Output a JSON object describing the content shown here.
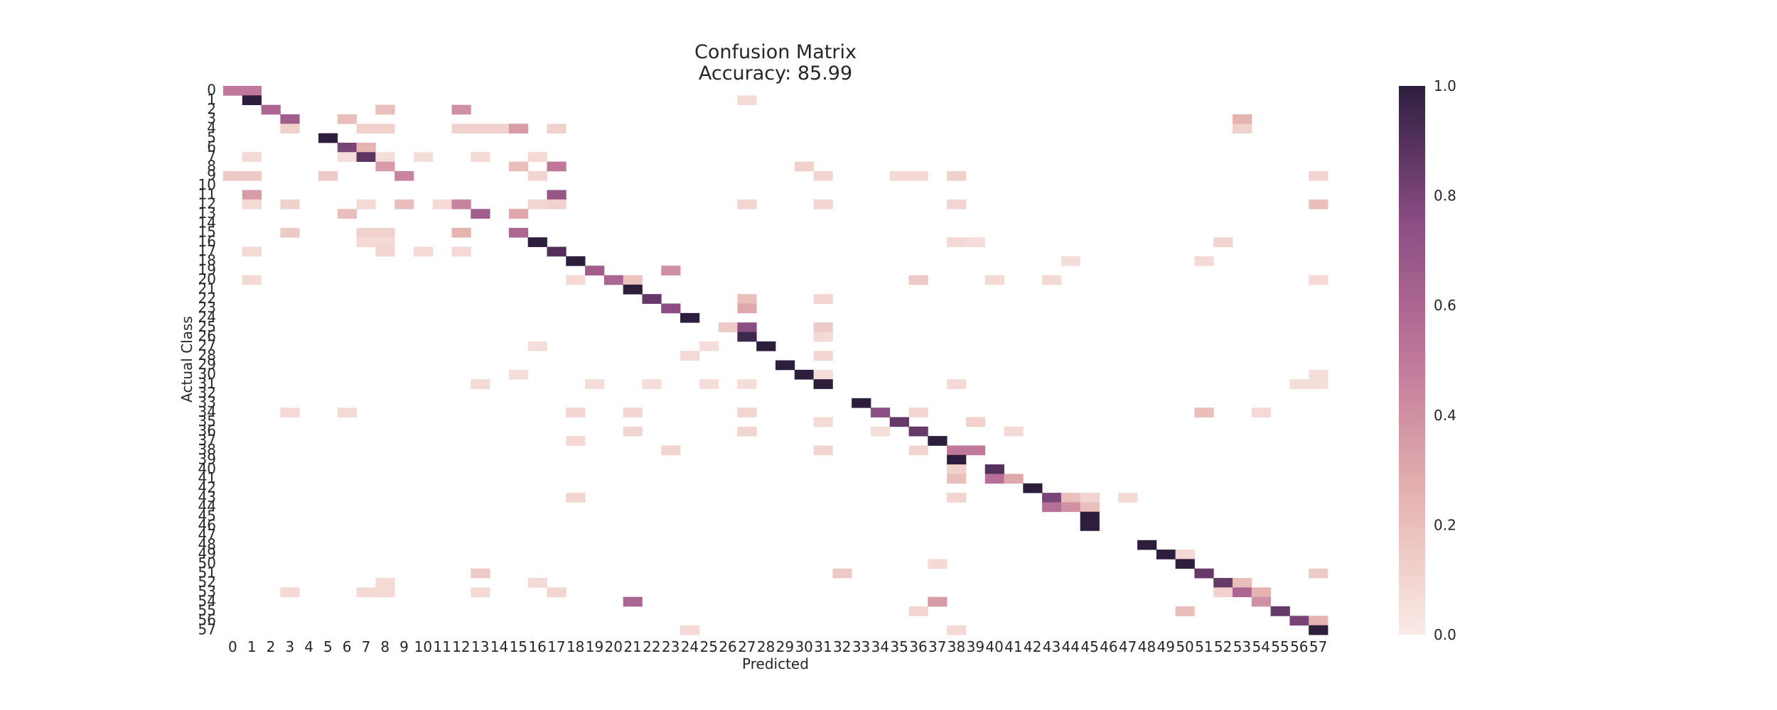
{
  "chart_data": {
    "type": "heatmap",
    "title": "Confusion Matrix",
    "subtitle": "Accuracy: 85.99",
    "xlabel": "Predicted",
    "ylabel": "Actual Class",
    "x_categories": [
      "0",
      "1",
      "2",
      "3",
      "4",
      "5",
      "6",
      "7",
      "8",
      "9",
      "10",
      "11",
      "12",
      "13",
      "14",
      "15",
      "16",
      "17",
      "18",
      "19",
      "20",
      "21",
      "22",
      "23",
      "24",
      "25",
      "26",
      "27",
      "28",
      "29",
      "30",
      "31",
      "32",
      "33",
      "34",
      "35",
      "36",
      "37",
      "38",
      "39",
      "40",
      "41",
      "42",
      "43",
      "44",
      "45",
      "46",
      "47",
      "48",
      "49",
      "50",
      "51",
      "52",
      "53",
      "54",
      "55",
      "56",
      "57"
    ],
    "y_categories": [
      "0",
      "1",
      "2",
      "3",
      "4",
      "5",
      "6",
      "7",
      "8",
      "9",
      "10",
      "11",
      "12",
      "13",
      "14",
      "15",
      "16",
      "17",
      "18",
      "19",
      "20",
      "21",
      "22",
      "23",
      "24",
      "25",
      "26",
      "27",
      "28",
      "29",
      "30",
      "31",
      "32",
      "33",
      "34",
      "35",
      "36",
      "37",
      "38",
      "39",
      "40",
      "41",
      "42",
      "43",
      "44",
      "45",
      "46",
      "47",
      "48",
      "49",
      "50",
      "51",
      "52",
      "53",
      "54",
      "55",
      "56",
      "57"
    ],
    "value_range": [
      0.0,
      1.0
    ],
    "colorbar_ticks": [
      "0.0",
      "0.2",
      "0.4",
      "0.6",
      "0.8",
      "1.0"
    ],
    "colormap": [
      "#faebe6",
      "#e6b4b0",
      "#c0789a",
      "#8c4d84",
      "#2d1e3e"
    ],
    "cells": [
      [
        0,
        0,
        0.5
      ],
      [
        0,
        1,
        0.5
      ],
      [
        1,
        1,
        1.0
      ],
      [
        1,
        27,
        0.08
      ],
      [
        2,
        2,
        0.6
      ],
      [
        2,
        8,
        0.2
      ],
      [
        2,
        12,
        0.4
      ],
      [
        3,
        3,
        0.65
      ],
      [
        3,
        6,
        0.2
      ],
      [
        3,
        53,
        0.25
      ],
      [
        4,
        3,
        0.12
      ],
      [
        4,
        7,
        0.12
      ],
      [
        4,
        8,
        0.12
      ],
      [
        4,
        12,
        0.12
      ],
      [
        4,
        13,
        0.12
      ],
      [
        4,
        14,
        0.12
      ],
      [
        4,
        15,
        0.35
      ],
      [
        4,
        17,
        0.12
      ],
      [
        4,
        53,
        0.12
      ],
      [
        5,
        5,
        1.0
      ],
      [
        6,
        6,
        0.8
      ],
      [
        6,
        7,
        0.25
      ],
      [
        7,
        1,
        0.08
      ],
      [
        7,
        6,
        0.06
      ],
      [
        7,
        7,
        0.88
      ],
      [
        7,
        8,
        0.06
      ],
      [
        7,
        10,
        0.06
      ],
      [
        7,
        13,
        0.08
      ],
      [
        7,
        16,
        0.08
      ],
      [
        8,
        8,
        0.35
      ],
      [
        8,
        15,
        0.2
      ],
      [
        8,
        17,
        0.5
      ],
      [
        8,
        30,
        0.12
      ],
      [
        9,
        0,
        0.15
      ],
      [
        9,
        1,
        0.15
      ],
      [
        9,
        5,
        0.15
      ],
      [
        9,
        9,
        0.45
      ],
      [
        9,
        16,
        0.1
      ],
      [
        9,
        31,
        0.1
      ],
      [
        9,
        35,
        0.08
      ],
      [
        9,
        36,
        0.08
      ],
      [
        9,
        38,
        0.12
      ],
      [
        9,
        57,
        0.1
      ],
      [
        11,
        1,
        0.35
      ],
      [
        11,
        17,
        0.7
      ],
      [
        12,
        1,
        0.08
      ],
      [
        12,
        3,
        0.12
      ],
      [
        12,
        7,
        0.08
      ],
      [
        12,
        9,
        0.2
      ],
      [
        12,
        11,
        0.08
      ],
      [
        12,
        12,
        0.45
      ],
      [
        12,
        16,
        0.1
      ],
      [
        12,
        17,
        0.12
      ],
      [
        12,
        27,
        0.1
      ],
      [
        12,
        31,
        0.1
      ],
      [
        12,
        38,
        0.1
      ],
      [
        12,
        57,
        0.2
      ],
      [
        13,
        6,
        0.2
      ],
      [
        13,
        13,
        0.65
      ],
      [
        13,
        15,
        0.3
      ],
      [
        15,
        3,
        0.15
      ],
      [
        15,
        7,
        0.12
      ],
      [
        15,
        8,
        0.12
      ],
      [
        15,
        12,
        0.25
      ],
      [
        15,
        15,
        0.6
      ],
      [
        16,
        7,
        0.08
      ],
      [
        16,
        8,
        0.08
      ],
      [
        16,
        16,
        1.0
      ],
      [
        16,
        38,
        0.08
      ],
      [
        16,
        39,
        0.06
      ],
      [
        16,
        52,
        0.1
      ],
      [
        17,
        1,
        0.08
      ],
      [
        17,
        8,
        0.1
      ],
      [
        17,
        10,
        0.08
      ],
      [
        17,
        12,
        0.08
      ],
      [
        17,
        17,
        0.9
      ],
      [
        18,
        18,
        1.0
      ],
      [
        18,
        44,
        0.06
      ],
      [
        18,
        51,
        0.08
      ],
      [
        19,
        19,
        0.65
      ],
      [
        19,
        23,
        0.4
      ],
      [
        20,
        1,
        0.08
      ],
      [
        20,
        18,
        0.08
      ],
      [
        20,
        20,
        0.6
      ],
      [
        20,
        21,
        0.18
      ],
      [
        20,
        36,
        0.15
      ],
      [
        20,
        40,
        0.08
      ],
      [
        20,
        43,
        0.08
      ],
      [
        20,
        57,
        0.08
      ],
      [
        21,
        21,
        1.0
      ],
      [
        22,
        22,
        0.85
      ],
      [
        22,
        27,
        0.2
      ],
      [
        22,
        31,
        0.1
      ],
      [
        23,
        23,
        0.75
      ],
      [
        23,
        27,
        0.3
      ],
      [
        24,
        24,
        1.0
      ],
      [
        25,
        26,
        0.15
      ],
      [
        25,
        27,
        0.75
      ],
      [
        25,
        31,
        0.15
      ],
      [
        26,
        27,
        0.95
      ],
      [
        26,
        31,
        0.08
      ],
      [
        27,
        16,
        0.06
      ],
      [
        27,
        25,
        0.06
      ],
      [
        27,
        28,
        1.0
      ],
      [
        28,
        24,
        0.08
      ],
      [
        28,
        31,
        0.1
      ],
      [
        29,
        29,
        1.0
      ],
      [
        30,
        15,
        0.06
      ],
      [
        30,
        30,
        1.0
      ],
      [
        30,
        31,
        0.06
      ],
      [
        30,
        57,
        0.06
      ],
      [
        31,
        13,
        0.08
      ],
      [
        31,
        19,
        0.06
      ],
      [
        31,
        22,
        0.06
      ],
      [
        31,
        25,
        0.06
      ],
      [
        31,
        27,
        0.06
      ],
      [
        31,
        31,
        1.0
      ],
      [
        31,
        38,
        0.08
      ],
      [
        31,
        56,
        0.06
      ],
      [
        31,
        57,
        0.06
      ],
      [
        33,
        33,
        1.0
      ],
      [
        34,
        3,
        0.08
      ],
      [
        34,
        6,
        0.08
      ],
      [
        34,
        18,
        0.1
      ],
      [
        34,
        21,
        0.1
      ],
      [
        34,
        27,
        0.1
      ],
      [
        34,
        34,
        0.75
      ],
      [
        34,
        36,
        0.1
      ],
      [
        34,
        51,
        0.2
      ],
      [
        34,
        54,
        0.08
      ],
      [
        35,
        31,
        0.08
      ],
      [
        35,
        35,
        0.85
      ],
      [
        35,
        39,
        0.12
      ],
      [
        36,
        21,
        0.1
      ],
      [
        36,
        27,
        0.1
      ],
      [
        36,
        34,
        0.06
      ],
      [
        36,
        36,
        0.85
      ],
      [
        36,
        41,
        0.08
      ],
      [
        37,
        18,
        0.08
      ],
      [
        37,
        37,
        1.0
      ],
      [
        38,
        23,
        0.1
      ],
      [
        38,
        31,
        0.1
      ],
      [
        38,
        36,
        0.1
      ],
      [
        38,
        38,
        0.5
      ],
      [
        38,
        39,
        0.5
      ],
      [
        39,
        38,
        1.0
      ],
      [
        40,
        38,
        0.12
      ],
      [
        40,
        40,
        0.9
      ],
      [
        41,
        38,
        0.2
      ],
      [
        41,
        40,
        0.55
      ],
      [
        41,
        41,
        0.3
      ],
      [
        42,
        42,
        1.0
      ],
      [
        43,
        18,
        0.1
      ],
      [
        43,
        38,
        0.1
      ],
      [
        43,
        43,
        0.8
      ],
      [
        43,
        44,
        0.2
      ],
      [
        43,
        45,
        0.1
      ],
      [
        43,
        47,
        0.08
      ],
      [
        44,
        43,
        0.55
      ],
      [
        44,
        44,
        0.4
      ],
      [
        44,
        45,
        0.2
      ],
      [
        45,
        45,
        1.0
      ],
      [
        46,
        45,
        1.0
      ],
      [
        48,
        48,
        1.0
      ],
      [
        49,
        49,
        1.0
      ],
      [
        49,
        50,
        0.08
      ],
      [
        50,
        37,
        0.08
      ],
      [
        50,
        50,
        1.0
      ],
      [
        51,
        13,
        0.15
      ],
      [
        51,
        32,
        0.15
      ],
      [
        51,
        51,
        0.85
      ],
      [
        51,
        57,
        0.15
      ],
      [
        52,
        8,
        0.08
      ],
      [
        52,
        16,
        0.08
      ],
      [
        52,
        52,
        0.85
      ],
      [
        52,
        53,
        0.2
      ],
      [
        53,
        3,
        0.08
      ],
      [
        53,
        7,
        0.08
      ],
      [
        53,
        8,
        0.08
      ],
      [
        53,
        13,
        0.08
      ],
      [
        53,
        17,
        0.1
      ],
      [
        53,
        52,
        0.12
      ],
      [
        53,
        53,
        0.6
      ],
      [
        53,
        54,
        0.25
      ],
      [
        54,
        21,
        0.6
      ],
      [
        54,
        37,
        0.35
      ],
      [
        54,
        54,
        0.4
      ],
      [
        55,
        36,
        0.1
      ],
      [
        55,
        50,
        0.2
      ],
      [
        55,
        55,
        0.85
      ],
      [
        56,
        56,
        0.8
      ],
      [
        56,
        57,
        0.25
      ],
      [
        57,
        24,
        0.08
      ],
      [
        57,
        38,
        0.08
      ],
      [
        57,
        57,
        1.0
      ]
    ]
  }
}
